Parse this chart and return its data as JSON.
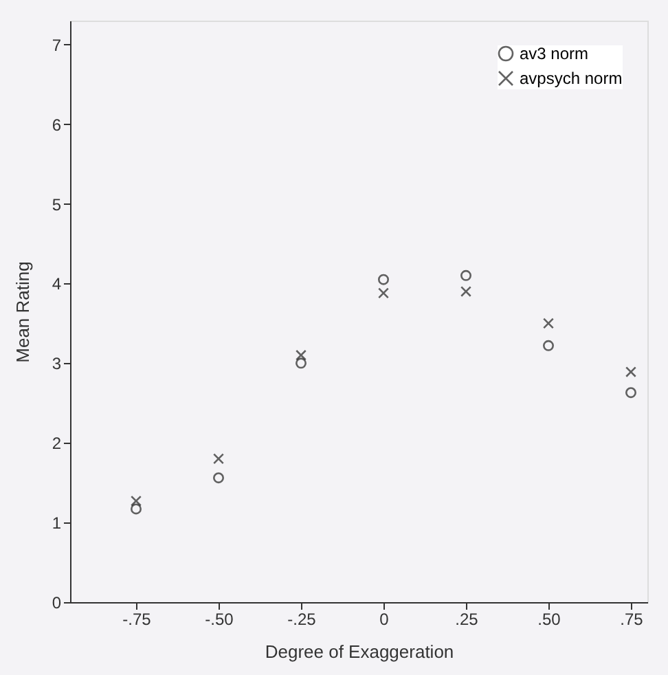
{
  "chart_data": {
    "type": "scatter",
    "xlabel": "Degree of Exaggeration",
    "ylabel": "Mean Rating",
    "x": [
      -0.75,
      -0.5,
      -0.25,
      0,
      0.25,
      0.5,
      0.75
    ],
    "series": [
      {
        "name": "av3 norm",
        "color": "#222222",
        "marker": "circle",
        "values": [
          1.17,
          1.56,
          3.0,
          4.05,
          4.1,
          3.22,
          2.63
        ]
      },
      {
        "name": "avpsych norm",
        "color": "#222222",
        "marker": "cross",
        "values": [
          1.27,
          1.8,
          3.1,
          3.88,
          3.9,
          3.5,
          2.89
        ]
      }
    ],
    "xlim": [
      -0.95,
      0.8
    ],
    "ylim": [
      0,
      7.3
    ],
    "xticks": [
      {
        "value": -0.75,
        "label": "-.75"
      },
      {
        "value": -0.5,
        "label": "-.50"
      },
      {
        "value": -0.25,
        "label": "-.25"
      },
      0,
      {
        "value": 0.25,
        "label": ".25"
      },
      {
        "value": 0.5,
        "label": ".50"
      },
      {
        "value": 0.75,
        "label": ".75"
      }
    ],
    "yticks": [
      0,
      1,
      2,
      3,
      4,
      5,
      6,
      7
    ],
    "grid": false,
    "legend": "top right"
  }
}
